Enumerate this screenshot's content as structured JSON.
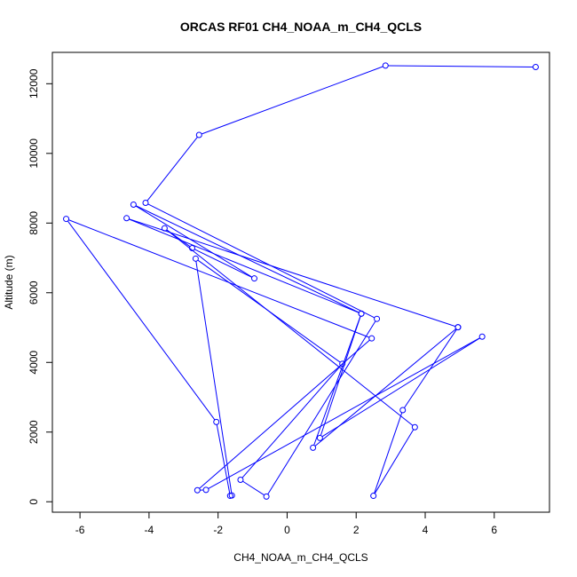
{
  "chart_data": {
    "type": "line",
    "title": "ORCAS RF01 CH4_NOAA_m_CH4_QCLS",
    "xlabel": "CH4_NOAA_m_CH4_QCLS",
    "ylabel": "Altitude (m)",
    "xlim": [
      -6.8,
      7.6
    ],
    "ylim": [
      -300,
      12900
    ],
    "xticks": [
      -6,
      -4,
      -2,
      0,
      2,
      4,
      6
    ],
    "yticks": [
      0,
      2000,
      4000,
      6000,
      8000,
      10000,
      12000
    ],
    "grid": false,
    "legend": "none",
    "colors": {
      "series": "#0000ff",
      "axis": "#000000",
      "background": "#ffffff"
    },
    "series": [
      {
        "marker": "open-circle",
        "points": [
          [
            7.2,
            12480
          ],
          [
            2.85,
            12520
          ],
          [
            -2.55,
            10530
          ],
          [
            -4.1,
            8580
          ],
          [
            2.6,
            5250
          ],
          [
            -0.6,
            150
          ],
          [
            -1.35,
            630
          ],
          [
            1.6,
            3960
          ],
          [
            -2.65,
            6980
          ],
          [
            -1.6,
            180
          ],
          [
            -1.65,
            170
          ],
          [
            -2.05,
            2290
          ],
          [
            -6.4,
            8120
          ],
          [
            2.45,
            4690
          ],
          [
            -2.6,
            330
          ],
          [
            -2.35,
            340
          ],
          [
            5.65,
            4740
          ],
          [
            0.95,
            1830
          ],
          [
            2.15,
            5400
          ],
          [
            -4.65,
            8140
          ],
          [
            4.95,
            5010
          ],
          [
            0.75,
            1550
          ],
          [
            2.15,
            5400
          ],
          [
            -4.45,
            8530
          ],
          [
            -0.95,
            6410
          ],
          [
            -2.75,
            7280
          ],
          [
            -3.55,
            7850
          ],
          [
            3.7,
            2140
          ],
          [
            2.5,
            170
          ],
          [
            3.35,
            2630
          ],
          [
            4.95,
            5010
          ]
        ]
      }
    ]
  }
}
